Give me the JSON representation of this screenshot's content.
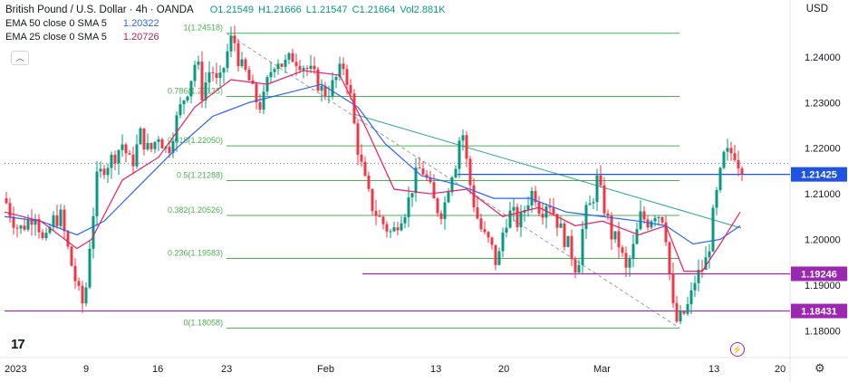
{
  "header": {
    "symbol_title": "British Pound / U.S. Dollar · 4h · OANDA",
    "ohlc": {
      "o": "O1.21549",
      "h": "H1.21666",
      "l": "L1.21547",
      "c": "C1.21664",
      "vol": "Vol2.881K"
    },
    "ema50_label": "EMA 50 close 0 SMA 5",
    "ema50_value": "1.20322",
    "ema25_label": "EMA 25 close 0 SMA 5",
    "ema25_value": "1.20726",
    "currency": "USD"
  },
  "colors": {
    "up": "#089981",
    "down": "#f23645",
    "ema50": "#2962ff",
    "ema25": "#e91e63",
    "fib": "#4caf50",
    "trend": "#26a69a",
    "hline_blue": "#1e53e5",
    "hline_purple": "#9c27b0"
  },
  "chart_data": {
    "type": "candlestick",
    "title": "British Pound / U.S. Dollar · 4h · OANDA",
    "ylim": [
      1.175,
      1.255
    ],
    "y_ticks": [
      "1.24000",
      "1.23000",
      "1.22000",
      "1.21000",
      "1.20000",
      "1.19000",
      "1.18000"
    ],
    "y_tick_values": [
      1.24,
      1.23,
      1.22,
      1.21,
      1.2,
      1.19,
      1.18
    ],
    "x_ticks": [
      "2023",
      "9",
      "16",
      "23",
      "Feb",
      "13",
      "20",
      "Mar",
      "13",
      "20"
    ],
    "fib_levels": [
      {
        "ratio": "1",
        "label": "1(1.24518)",
        "value": 1.24518
      },
      {
        "ratio": "0.786",
        "label": "0.786(1.23135)",
        "value": 1.23135
      },
      {
        "ratio": "0.618",
        "label": "0.618(1.22050)",
        "value": 1.2205
      },
      {
        "ratio": "0.5",
        "label": "0.5(1.21288)",
        "value": 1.21288
      },
      {
        "ratio": "0.382",
        "label": "0.382(1.20526)",
        "value": 1.20526
      },
      {
        "ratio": "0.236",
        "label": "0.236(1.19583)",
        "value": 1.19583
      },
      {
        "ratio": "0",
        "label": "0(1.18058)",
        "value": 1.18058
      }
    ],
    "horizontal_lines": [
      {
        "label": "1.21425",
        "value": 1.21425,
        "color": "#1e53e5"
      },
      {
        "label": "1.19246",
        "value": 1.19246,
        "color": "#9c27b0"
      },
      {
        "label": "1.18431",
        "value": 1.18431,
        "color": "#9c27b0"
      }
    ],
    "current_price_value": 1.21664,
    "price_path": [
      [
        0,
        1.209
      ],
      [
        8,
        1.205
      ],
      [
        16,
        1.202
      ],
      [
        26,
        1.204
      ],
      [
        34,
        1.206
      ],
      [
        44,
        1.198
      ],
      [
        52,
        1.204
      ],
      [
        62,
        1.205
      ],
      [
        72,
        1.196
      ],
      [
        82,
        1.188
      ],
      [
        88,
        1.185
      ],
      [
        94,
        1.199
      ],
      [
        102,
        1.213
      ],
      [
        110,
        1.216
      ],
      [
        120,
        1.218
      ],
      [
        130,
        1.221
      ],
      [
        140,
        1.216
      ],
      [
        150,
        1.223
      ],
      [
        160,
        1.219
      ],
      [
        170,
        1.223
      ],
      [
        180,
        1.219
      ],
      [
        188,
        1.225
      ],
      [
        196,
        1.23
      ],
      [
        204,
        1.234
      ],
      [
        212,
        1.24
      ],
      [
        218,
        1.232
      ],
      [
        228,
        1.238
      ],
      [
        236,
        1.233
      ],
      [
        246,
        1.241
      ],
      [
        252,
        1.245
      ],
      [
        260,
        1.238
      ],
      [
        268,
        1.236
      ],
      [
        276,
        1.231
      ],
      [
        284,
        1.229
      ],
      [
        292,
        1.236
      ],
      [
        300,
        1.24
      ],
      [
        308,
        1.238
      ],
      [
        318,
        1.24
      ],
      [
        326,
        1.239
      ],
      [
        336,
        1.237
      ],
      [
        344,
        1.235
      ],
      [
        352,
        1.232
      ],
      [
        360,
        1.233
      ],
      [
        368,
        1.236
      ],
      [
        374,
        1.238
      ],
      [
        380,
        1.234
      ],
      [
        388,
        1.222
      ],
      [
        396,
        1.214
      ],
      [
        404,
        1.208
      ],
      [
        412,
        1.205
      ],
      [
        420,
        1.203
      ],
      [
        428,
        1.201
      ],
      [
        436,
        1.205
      ],
      [
        444,
        1.207
      ],
      [
        452,
        1.213
      ],
      [
        460,
        1.216
      ],
      [
        468,
        1.212
      ],
      [
        476,
        1.207
      ],
      [
        484,
        1.206
      ],
      [
        492,
        1.214
      ],
      [
        500,
        1.218
      ],
      [
        504,
        1.226
      ],
      [
        512,
        1.214
      ],
      [
        520,
        1.206
      ],
      [
        528,
        1.201
      ],
      [
        536,
        1.199
      ],
      [
        544,
        1.194
      ],
      [
        552,
        1.204
      ],
      [
        560,
        1.206
      ],
      [
        568,
        1.203
      ],
      [
        576,
        1.208
      ],
      [
        584,
        1.211
      ],
      [
        592,
        1.206
      ],
      [
        600,
        1.209
      ],
      [
        608,
        1.205
      ],
      [
        616,
        1.201
      ],
      [
        624,
        1.198
      ],
      [
        632,
        1.193
      ],
      [
        640,
        1.205
      ],
      [
        648,
        1.208
      ],
      [
        654,
        1.213
      ],
      [
        662,
        1.207
      ],
      [
        670,
        1.201
      ],
      [
        678,
        1.199
      ],
      [
        686,
        1.193
      ],
      [
        694,
        1.198
      ],
      [
        702,
        1.205
      ],
      [
        710,
        1.204
      ],
      [
        718,
        1.206
      ],
      [
        726,
        1.205
      ],
      [
        732,
        1.199
      ],
      [
        736,
        1.186
      ],
      [
        742,
        1.182
      ],
      [
        748,
        1.183
      ],
      [
        756,
        1.186
      ],
      [
        762,
        1.191
      ],
      [
        768,
        1.193
      ],
      [
        776,
        1.196
      ],
      [
        782,
        1.205
      ],
      [
        788,
        1.212
      ],
      [
        794,
        1.218
      ],
      [
        800,
        1.219
      ],
      [
        806,
        1.219
      ],
      [
        812,
        1.216
      ],
      [
        816,
        1.2166
      ]
    ],
    "ema25_path": [
      [
        0,
        1.206
      ],
      [
        40,
        1.204
      ],
      [
        80,
        1.198
      ],
      [
        96,
        1.2
      ],
      [
        130,
        1.213
      ],
      [
        170,
        1.218
      ],
      [
        210,
        1.229
      ],
      [
        250,
        1.235
      ],
      [
        290,
        1.234
      ],
      [
        330,
        1.237
      ],
      [
        370,
        1.236
      ],
      [
        400,
        1.224
      ],
      [
        430,
        1.211
      ],
      [
        470,
        1.21
      ],
      [
        510,
        1.211
      ],
      [
        550,
        1.205
      ],
      [
        590,
        1.207
      ],
      [
        630,
        1.203
      ],
      [
        660,
        1.204
      ],
      [
        700,
        1.201
      ],
      [
        730,
        1.203
      ],
      [
        750,
        1.193
      ],
      [
        770,
        1.193
      ],
      [
        790,
        1.199
      ],
      [
        812,
        1.206
      ]
    ],
    "ema50_path": [
      [
        0,
        1.205
      ],
      [
        40,
        1.204
      ],
      [
        80,
        1.201
      ],
      [
        110,
        1.204
      ],
      [
        150,
        1.212
      ],
      [
        190,
        1.22
      ],
      [
        230,
        1.227
      ],
      [
        270,
        1.23
      ],
      [
        310,
        1.232
      ],
      [
        350,
        1.234
      ],
      [
        390,
        1.229
      ],
      [
        420,
        1.221
      ],
      [
        460,
        1.214
      ],
      [
        500,
        1.212
      ],
      [
        540,
        1.209
      ],
      [
        580,
        1.209
      ],
      [
        620,
        1.206
      ],
      [
        660,
        1.205
      ],
      [
        700,
        1.204
      ],
      [
        730,
        1.203
      ],
      [
        760,
        1.199
      ],
      [
        790,
        1.2
      ],
      [
        812,
        1.203
      ]
    ]
  }
}
